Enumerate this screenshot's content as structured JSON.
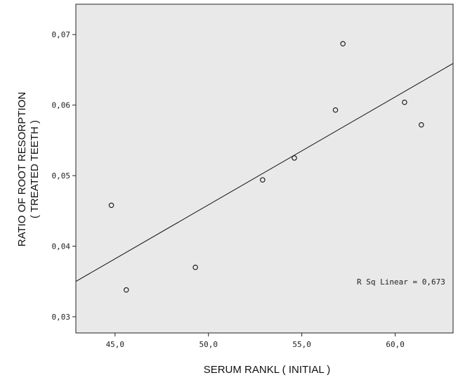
{
  "chart_data": {
    "type": "scatter",
    "xlabel": "SERUM RANKL ( INITIAL )",
    "ylabel_lines": [
      "RATIO OF ROOT RESORPTION",
      "( TREATED TEETH )"
    ],
    "xlim": [
      42.9,
      63.1
    ],
    "ylim": [
      0.0277,
      0.0743
    ],
    "x_ticks": [
      45.0,
      50.0,
      55.0,
      60.0
    ],
    "x_tick_labels": [
      "45,0",
      "50,0",
      "55,0",
      "60,0"
    ],
    "y_ticks": [
      0.03,
      0.04,
      0.05,
      0.06,
      0.07
    ],
    "y_tick_labels": [
      "0,03",
      "0,04",
      "0,05",
      "0,06",
      "0,07"
    ],
    "points": [
      {
        "x": 44.8,
        "y": 0.0458
      },
      {
        "x": 45.6,
        "y": 0.0338
      },
      {
        "x": 49.3,
        "y": 0.037
      },
      {
        "x": 52.9,
        "y": 0.0494
      },
      {
        "x": 54.6,
        "y": 0.0525
      },
      {
        "x": 56.8,
        "y": 0.0593
      },
      {
        "x": 57.2,
        "y": 0.0687
      },
      {
        "x": 60.5,
        "y": 0.0604
      },
      {
        "x": 61.4,
        "y": 0.0572
      }
    ],
    "fit_line": {
      "type": "linear",
      "x": [
        42.9,
        63.1
      ],
      "y": [
        0.035,
        0.0659
      ]
    },
    "annotation": "R Sq Linear = 0,673",
    "grid": false,
    "plot_background": "#e9e9e9",
    "marker_color": "#111111",
    "line_color": "#111111"
  }
}
